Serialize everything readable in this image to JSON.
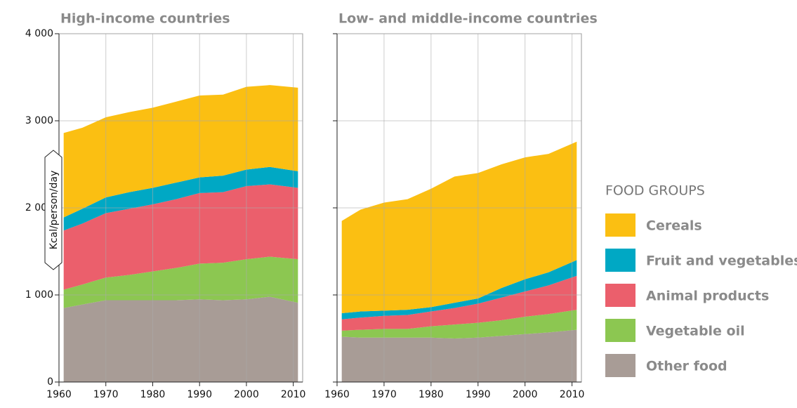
{
  "chart_data": [
    {
      "type": "stacked_area",
      "title": "High-income countries",
      "ylabel": "Kcal/person/day",
      "legend_title": "FOOD GROUPS",
      "x": [
        1961,
        1965,
        1970,
        1975,
        1980,
        1985,
        1990,
        1995,
        2000,
        2005,
        2011
      ],
      "series": [
        {
          "name": "Cereals",
          "color": "#fbbf12",
          "values": [
            970,
            930,
            920,
            920,
            920,
            930,
            940,
            930,
            950,
            940,
            960
          ]
        },
        {
          "name": "Fruit and vegetables",
          "color": "#00a8c4",
          "values": [
            150,
            170,
            180,
            190,
            190,
            190,
            180,
            190,
            190,
            200,
            190
          ]
        },
        {
          "name": "Animal products",
          "color": "#eb5f6c",
          "values": [
            680,
            700,
            740,
            760,
            770,
            790,
            810,
            810,
            840,
            830,
            820
          ]
        },
        {
          "name": "Vegetable oil",
          "color": "#8cc751",
          "values": [
            210,
            230,
            260,
            290,
            330,
            370,
            410,
            430,
            460,
            460,
            500
          ]
        },
        {
          "name": "Other food",
          "color": "#a89c96",
          "values": [
            850,
            890,
            940,
            940,
            940,
            940,
            950,
            940,
            950,
            980,
            910
          ]
        }
      ],
      "xlim": [
        1960,
        2012
      ],
      "xticks": [
        1960,
        1970,
        1980,
        1990,
        2000,
        2010
      ],
      "ylim": [
        0,
        4000
      ],
      "yticks": [
        0,
        {
          "value": 1000,
          "label": "1 000"
        },
        {
          "value": 2000,
          "label": "2 000"
        },
        {
          "value": 3000,
          "label": "3 000"
        },
        {
          "value": 4000,
          "label": "4 000"
        }
      ],
      "grid": true
    },
    {
      "type": "stacked_area",
      "title": "Low- and middle-income countries",
      "x": [
        1961,
        1965,
        1970,
        1975,
        1980,
        1985,
        1990,
        1995,
        2000,
        2005,
        2011
      ],
      "series": [
        {
          "name": "Cereals",
          "color": "#fbbf12",
          "values": [
            1060,
            1170,
            1240,
            1270,
            1360,
            1450,
            1440,
            1420,
            1400,
            1360,
            1360
          ]
        },
        {
          "name": "Fruit and vegetables",
          "color": "#00a8c4",
          "values": [
            70,
            70,
            60,
            60,
            50,
            60,
            60,
            110,
            140,
            150,
            180
          ]
        },
        {
          "name": "Animal products",
          "color": "#eb5f6c",
          "values": [
            130,
            140,
            150,
            160,
            170,
            190,
            220,
            260,
            290,
            330,
            390
          ]
        },
        {
          "name": "Vegetable oil",
          "color": "#8cc751",
          "values": [
            70,
            90,
            100,
            100,
            130,
            160,
            170,
            180,
            200,
            210,
            230
          ]
        },
        {
          "name": "Other food",
          "color": "#a89c96",
          "values": [
            520,
            510,
            510,
            510,
            510,
            500,
            510,
            530,
            550,
            570,
            600
          ]
        }
      ],
      "xlim": [
        1960,
        2012
      ],
      "xticks": [
        1960,
        1970,
        1980,
        1990,
        2000,
        2010
      ],
      "ylim": [
        0,
        4000
      ],
      "yticks": [
        0,
        1000,
        2000,
        3000,
        4000
      ],
      "grid": true
    }
  ]
}
